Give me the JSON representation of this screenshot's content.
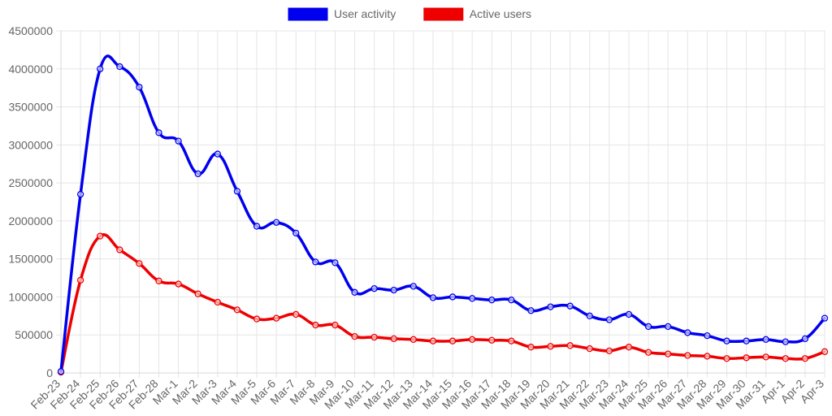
{
  "chart_data": {
    "type": "line",
    "title": "",
    "xlabel": "",
    "ylabel": "",
    "ylim": [
      0,
      4500000
    ],
    "yticks": [
      0,
      500000,
      1000000,
      1500000,
      2000000,
      2500000,
      3000000,
      3500000,
      4000000,
      4500000
    ],
    "ytick_labels": [
      "0",
      "500000",
      "1000000",
      "1500000",
      "2000000",
      "2500000",
      "3000000",
      "3500000",
      "4000000",
      "4500000"
    ],
    "grid": true,
    "legend_position": "top-center",
    "categories": [
      "Feb-23",
      "Feb-24",
      "Feb-25",
      "Feb-26",
      "Feb-27",
      "Feb-28",
      "Mar-1",
      "Mar-2",
      "Mar-3",
      "Mar-4",
      "Mar-5",
      "Mar-6",
      "Mar-7",
      "Mar-8",
      "Mar-9",
      "Mar-10",
      "Mar-11",
      "Mar-12",
      "Mar-13",
      "Mar-14",
      "Mar-15",
      "Mar-16",
      "Mar-17",
      "Mar-18",
      "Mar-19",
      "Mar-20",
      "Mar-21",
      "Mar-22",
      "Mar-23",
      "Mar-24",
      "Mar-25",
      "Mar-26",
      "Mar-27",
      "Mar-28",
      "Mar-29",
      "Mar-30",
      "Mar-31",
      "Apr-1",
      "Apr-2",
      "Apr-3"
    ],
    "series": [
      {
        "name": "User activity",
        "color": "#0000ee",
        "values": [
          20000,
          2350000,
          4000000,
          4030000,
          3760000,
          3160000,
          3050000,
          2620000,
          2880000,
          2390000,
          1930000,
          1980000,
          1840000,
          1460000,
          1450000,
          1060000,
          1110000,
          1090000,
          1140000,
          990000,
          1000000,
          980000,
          960000,
          960000,
          820000,
          870000,
          880000,
          750000,
          700000,
          770000,
          610000,
          610000,
          530000,
          490000,
          420000,
          420000,
          440000,
          410000,
          450000,
          720000
        ]
      },
      {
        "name": "Active users",
        "color": "#ee0000",
        "values": [
          10000,
          1220000,
          1800000,
          1620000,
          1440000,
          1210000,
          1170000,
          1040000,
          930000,
          830000,
          710000,
          720000,
          770000,
          630000,
          630000,
          480000,
          470000,
          450000,
          440000,
          420000,
          420000,
          440000,
          430000,
          420000,
          340000,
          350000,
          360000,
          320000,
          290000,
          340000,
          270000,
          250000,
          230000,
          220000,
          190000,
          200000,
          210000,
          190000,
          190000,
          280000
        ]
      }
    ]
  }
}
